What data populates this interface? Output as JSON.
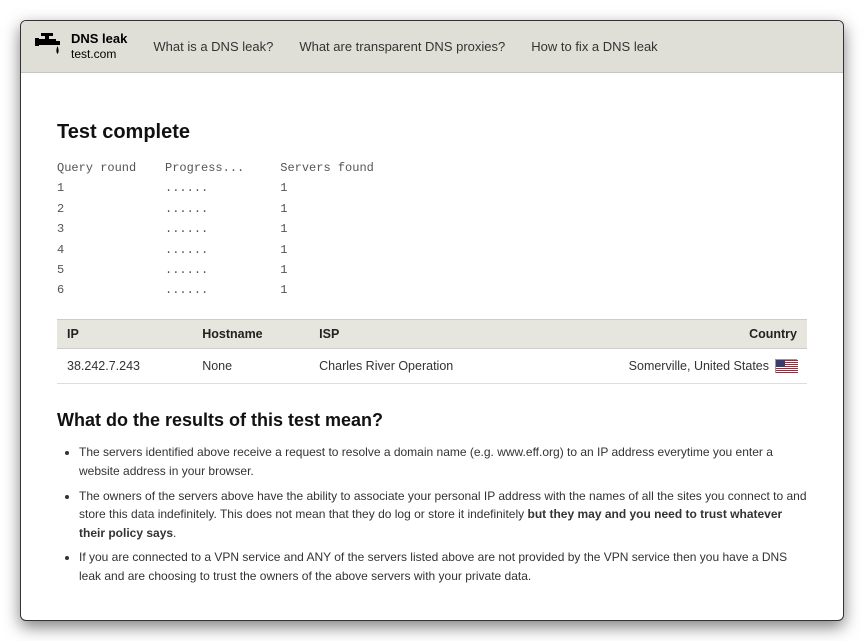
{
  "site": {
    "logo_line1": "DNS leak",
    "logo_line2": "test.com"
  },
  "nav": {
    "link1": "What is a DNS leak?",
    "link2": "What are transparent DNS proxies?",
    "link3": "How to fix a DNS leak"
  },
  "heading": "Test complete",
  "progress": {
    "columns": {
      "round": "Query round",
      "progress": "Progress...",
      "servers": "Servers found"
    },
    "rows": [
      {
        "round": "1",
        "progress": "......",
        "servers": "1"
      },
      {
        "round": "2",
        "progress": "......",
        "servers": "1"
      },
      {
        "round": "3",
        "progress": "......",
        "servers": "1"
      },
      {
        "round": "4",
        "progress": "......",
        "servers": "1"
      },
      {
        "round": "5",
        "progress": "......",
        "servers": "1"
      },
      {
        "round": "6",
        "progress": "......",
        "servers": "1"
      }
    ]
  },
  "results": {
    "columns": {
      "ip": "IP",
      "hostname": "Hostname",
      "isp": "ISP",
      "country": "Country"
    },
    "rows": [
      {
        "ip": "38.242.7.243",
        "hostname": "None",
        "isp": "Charles River Operation",
        "country": "Somerville, United States",
        "flag_colors": {
          "stripes": [
            "#b22234",
            "#ffffff"
          ],
          "canton": "#3c3b6e"
        }
      }
    ]
  },
  "meaning": {
    "heading": "What do the results of this test mean?",
    "bullets": [
      {
        "text": "The servers identified above receive a request to resolve a domain name (e.g. www.eff.org) to an IP address everytime you enter a website address in your browser."
      },
      {
        "text_pre": "The owners of the servers above have the ability to associate your personal IP address with the names of all the sites you connect to and store this data indefinitely. This does not mean that they do log or store it indefinitely ",
        "bold": "but they may and you need to trust whatever their policy says",
        "text_post": "."
      },
      {
        "text": "If you are connected to a VPN service and ANY of the servers listed above are not provided by the VPN service then you have a DNS leak and are choosing to trust the owners of the above servers with your private data."
      }
    ]
  },
  "colors": {
    "topbar_bg": "#e0dfd7",
    "header_row_bg": "#e7e6de",
    "border": "#cccccc",
    "text": "#333333"
  }
}
